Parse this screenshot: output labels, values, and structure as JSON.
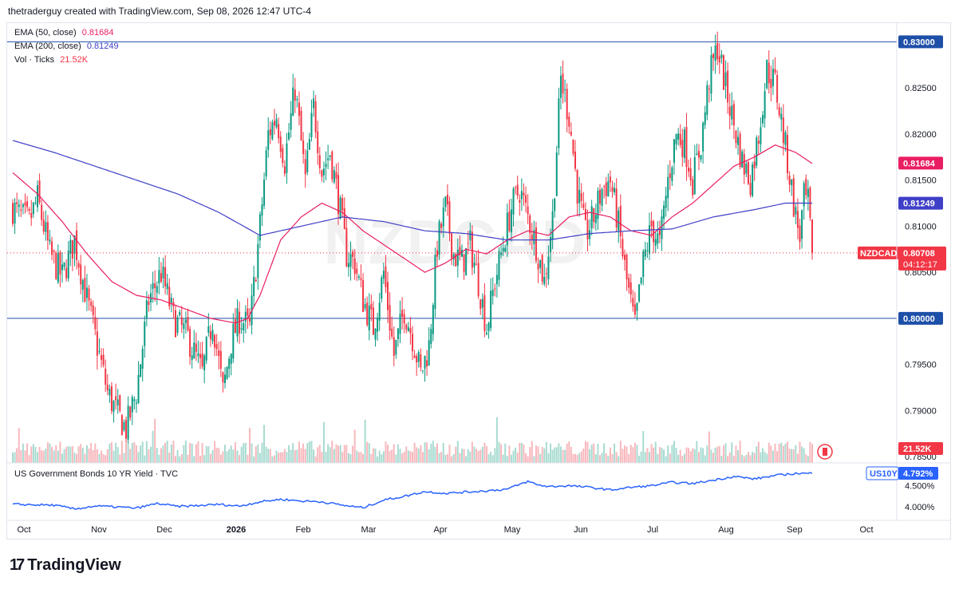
{
  "header": {
    "text": "thetraderguy created with TradingView.com, Sep 08, 2026 12:47 UTC-4"
  },
  "legend": {
    "ema50_label": "EMA (50, close)",
    "ema50_value": "0.81684",
    "ema200_label": "EMA (200, close)",
    "ema200_value": "0.81249",
    "vol_label": "Vol · Ticks",
    "vol_value": "21.52K"
  },
  "symbol": {
    "watermark": "NZDCAD",
    "tag": "NZDCAD",
    "price": "0.80708",
    "countdown": "04:12:17"
  },
  "lower_pane": {
    "title": "US Government Bonds 10 YR Yield · TVC",
    "symbol_tag": "US10Y",
    "value": "4.792%"
  },
  "footer": {
    "brand": "TradingView"
  },
  "colors": {
    "up": "#089981",
    "down": "#f23645",
    "ema50": "#e91e63",
    "ema200": "#3f3fc7",
    "yield": "#2962ff",
    "hline": "#1e4fa8"
  },
  "chart_data": [
    {
      "type": "candlestick",
      "symbol": "NZDCAD",
      "y_ticks": [
        "0.83000",
        "0.82500",
        "0.82000",
        "0.81500",
        "0.81000",
        "0.80500",
        "0.80000",
        "0.79500",
        "0.79000",
        "0.78500"
      ],
      "ylim": [
        0.7845,
        0.8315
      ],
      "x_ticks": [
        "Oct",
        "Nov",
        "Dec",
        "2026",
        "Feb",
        "Mar",
        "Apr",
        "May",
        "Jun",
        "Jul",
        "Aug",
        "Sep",
        "Oct"
      ],
      "horizontal_levels": [
        "0.83000",
        "0.80000"
      ],
      "price_labels": {
        "ema50": "0.81684",
        "ema200": "0.81249",
        "last": "0.80708",
        "volume": "21.52K"
      },
      "close_anchors": [
        [
          0,
          0.812
        ],
        [
          4,
          0.811
        ],
        [
          8,
          0.8105
        ],
        [
          12,
          0.813
        ],
        [
          18,
          0.807
        ],
        [
          24,
          0.8045
        ],
        [
          30,
          0.8085
        ],
        [
          36,
          0.802
        ],
        [
          41,
          0.797
        ],
        [
          46,
          0.792
        ],
        [
          50,
          0.79
        ],
        [
          55,
          0.788
        ],
        [
          60,
          0.792
        ],
        [
          66,
          0.802
        ],
        [
          72,
          0.805
        ],
        [
          78,
          0.8
        ],
        [
          85,
          0.798
        ],
        [
          92,
          0.794
        ],
        [
          97,
          0.8
        ],
        [
          102,
          0.792
        ],
        [
          106,
          0.7975
        ],
        [
          110,
          0.8
        ],
        [
          115,
          0.799
        ],
        [
          120,
          0.81
        ],
        [
          124,
          0.82
        ],
        [
          128,
          0.822
        ],
        [
          132,
          0.817
        ],
        [
          137,
          0.825
        ],
        [
          142,
          0.815
        ],
        [
          146,
          0.823
        ],
        [
          150,
          0.816
        ],
        [
          154,
          0.818
        ],
        [
          158,
          0.813
        ],
        [
          162,
          0.807
        ],
        [
          166,
          0.806
        ],
        [
          170,
          0.802
        ],
        [
          175,
          0.799
        ],
        [
          180,
          0.805
        ],
        [
          185,
          0.796
        ],
        [
          190,
          0.801
        ],
        [
          194,
          0.798
        ],
        [
          198,
          0.794
        ],
        [
          202,
          0.797
        ],
        [
          206,
          0.808
        ],
        [
          210,
          0.812
        ],
        [
          214,
          0.807
        ],
        [
          218,
          0.806
        ],
        [
          222,
          0.808
        ],
        [
          226,
          0.804
        ],
        [
          230,
          0.799
        ],
        [
          234,
          0.804
        ],
        [
          238,
          0.808
        ],
        [
          242,
          0.812
        ],
        [
          246,
          0.814
        ],
        [
          250,
          0.811
        ],
        [
          254,
          0.808
        ],
        [
          258,
          0.804
        ],
        [
          262,
          0.811
        ],
        [
          266,
          0.826
        ],
        [
          270,
          0.822
        ],
        [
          274,
          0.814
        ],
        [
          278,
          0.809
        ],
        [
          282,
          0.811
        ],
        [
          286,
          0.814
        ],
        [
          290,
          0.815
        ],
        [
          294,
          0.81
        ],
        [
          298,
          0.804
        ],
        [
          302,
          0.799
        ],
        [
          306,
          0.806
        ],
        [
          310,
          0.81
        ],
        [
          314,
          0.808
        ],
        [
          318,
          0.815
        ],
        [
          322,
          0.82
        ],
        [
          326,
          0.819
        ],
        [
          330,
          0.815
        ],
        [
          334,
          0.819
        ],
        [
          338,
          0.826
        ],
        [
          342,
          0.8295
        ],
        [
          346,
          0.825
        ],
        [
          350,
          0.821
        ],
        [
          354,
          0.817
        ],
        [
          358,
          0.815
        ],
        [
          362,
          0.82
        ],
        [
          366,
          0.827
        ],
        [
          370,
          0.8255
        ],
        [
          374,
          0.82
        ],
        [
          378,
          0.814
        ],
        [
          380,
          0.811
        ],
        [
          382,
          0.809
        ],
        [
          384,
          0.813
        ],
        [
          386,
          0.8124
        ],
        [
          388,
          0.8071
        ]
      ],
      "ema50_anchors": [
        [
          0,
          0.8158
        ],
        [
          12,
          0.8135
        ],
        [
          24,
          0.8105
        ],
        [
          36,
          0.807
        ],
        [
          48,
          0.804
        ],
        [
          60,
          0.8025
        ],
        [
          72,
          0.802
        ],
        [
          84,
          0.801
        ],
        [
          96,
          0.8
        ],
        [
          108,
          0.7995
        ],
        [
          114,
          0.8
        ],
        [
          120,
          0.8025
        ],
        [
          130,
          0.8085
        ],
        [
          140,
          0.811
        ],
        [
          150,
          0.8125
        ],
        [
          160,
          0.8115
        ],
        [
          170,
          0.8095
        ],
        [
          180,
          0.808
        ],
        [
          190,
          0.8065
        ],
        [
          200,
          0.805
        ],
        [
          210,
          0.806
        ],
        [
          220,
          0.8075
        ],
        [
          230,
          0.807
        ],
        [
          240,
          0.8085
        ],
        [
          250,
          0.8095
        ],
        [
          260,
          0.809
        ],
        [
          270,
          0.811
        ],
        [
          280,
          0.8115
        ],
        [
          290,
          0.811
        ],
        [
          300,
          0.8095
        ],
        [
          310,
          0.809
        ],
        [
          320,
          0.811
        ],
        [
          330,
          0.8125
        ],
        [
          340,
          0.8145
        ],
        [
          350,
          0.8165
        ],
        [
          360,
          0.8175
        ],
        [
          370,
          0.8188
        ],
        [
          380,
          0.818
        ],
        [
          388,
          0.8168
        ]
      ],
      "ema200_anchors": [
        [
          0,
          0.8193
        ],
        [
          20,
          0.818
        ],
        [
          40,
          0.8165
        ],
        [
          60,
          0.815
        ],
        [
          80,
          0.8135
        ],
        [
          100,
          0.8115
        ],
        [
          120,
          0.809
        ],
        [
          140,
          0.81
        ],
        [
          160,
          0.811
        ],
        [
          180,
          0.8105
        ],
        [
          200,
          0.8095
        ],
        [
          220,
          0.8092
        ],
        [
          240,
          0.8085
        ],
        [
          260,
          0.8085
        ],
        [
          280,
          0.8092
        ],
        [
          300,
          0.8095
        ],
        [
          320,
          0.8097
        ],
        [
          340,
          0.811
        ],
        [
          360,
          0.8118
        ],
        [
          375,
          0.8125
        ],
        [
          388,
          0.8125
        ]
      ]
    },
    {
      "type": "line",
      "series_title": "US Government Bonds 10 YR Yield · TVC",
      "y_ticks": [
        "4.500%",
        "4.000%"
      ],
      "ylim": [
        3.72,
        5.0
      ],
      "last_value": "4.792%",
      "anchors": [
        [
          0,
          4.06
        ],
        [
          20,
          4.04
        ],
        [
          30,
          3.95
        ],
        [
          40,
          4.02
        ],
        [
          50,
          4.0
        ],
        [
          60,
          3.97
        ],
        [
          70,
          4.08
        ],
        [
          80,
          4.01
        ],
        [
          90,
          4.03
        ],
        [
          100,
          4.06
        ],
        [
          110,
          4.02
        ],
        [
          120,
          4.12
        ],
        [
          130,
          4.18
        ],
        [
          140,
          4.14
        ],
        [
          150,
          4.12
        ],
        [
          160,
          4.04
        ],
        [
          170,
          3.98
        ],
        [
          180,
          4.16
        ],
        [
          190,
          4.25
        ],
        [
          200,
          4.36
        ],
        [
          210,
          4.32
        ],
        [
          220,
          4.35
        ],
        [
          230,
          4.38
        ],
        [
          240,
          4.42
        ],
        [
          250,
          4.6
        ],
        [
          255,
          4.52
        ],
        [
          260,
          4.48
        ],
        [
          270,
          4.5
        ],
        [
          280,
          4.46
        ],
        [
          290,
          4.4
        ],
        [
          300,
          4.46
        ],
        [
          310,
          4.5
        ],
        [
          320,
          4.58
        ],
        [
          330,
          4.55
        ],
        [
          340,
          4.63
        ],
        [
          350,
          4.72
        ],
        [
          360,
          4.66
        ],
        [
          370,
          4.74
        ],
        [
          380,
          4.79
        ],
        [
          388,
          4.79
        ]
      ]
    }
  ]
}
